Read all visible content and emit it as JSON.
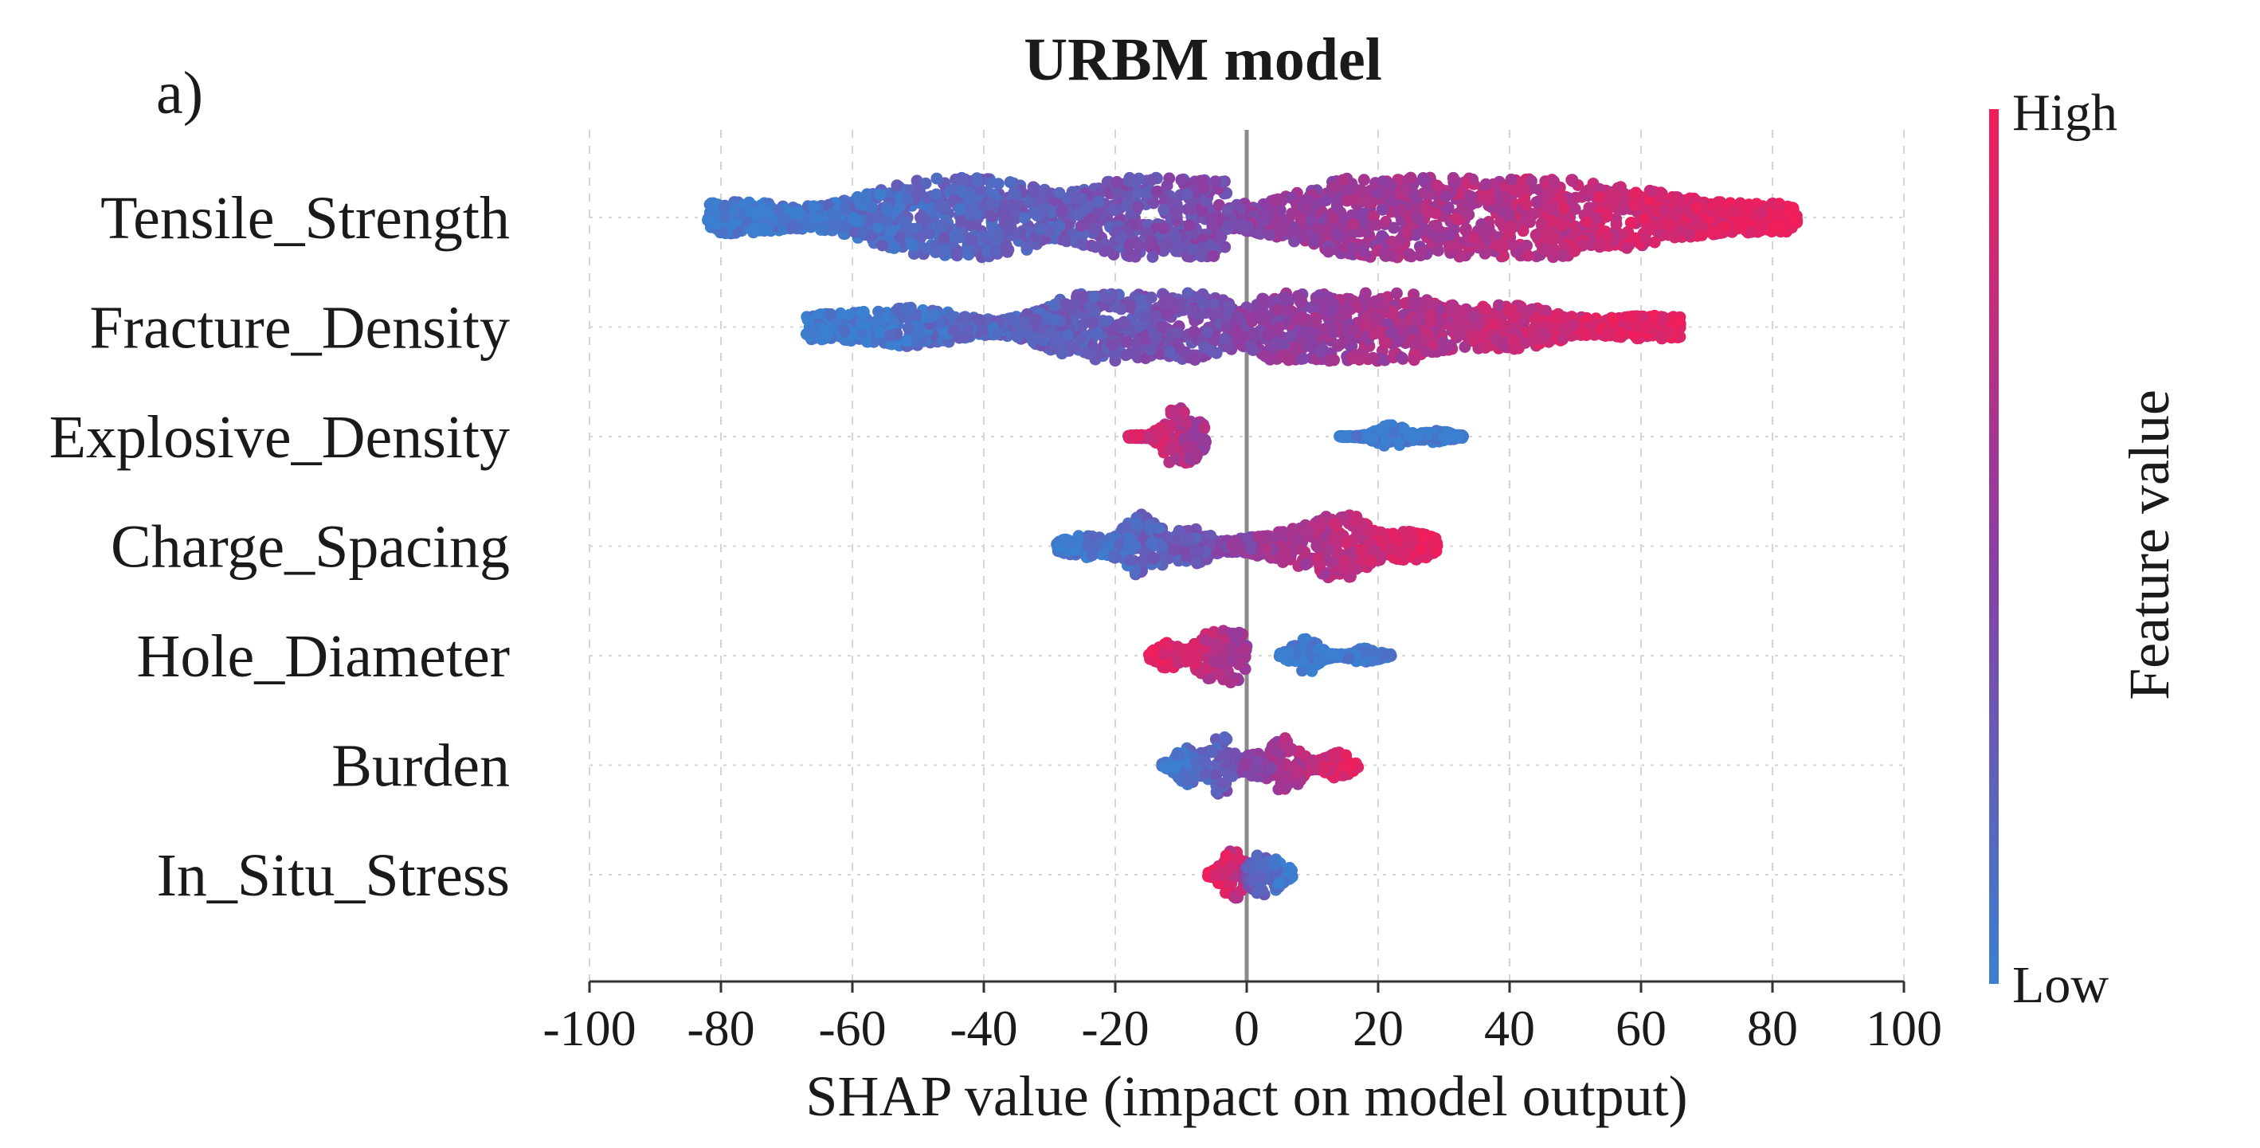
{
  "panel_label": "a)",
  "colors": {
    "low": "#3a7fd0",
    "mid": "#8b3ea3",
    "high": "#f01e5a"
  },
  "chart_data": {
    "type": "scatter",
    "subtype": "shap-beeswarm",
    "title": "URBM model",
    "xlabel": "SHAP value (impact on model output)",
    "ylabel": "",
    "xlim": [
      -100,
      100
    ],
    "xticks": [
      "-100",
      "-80",
      "-60",
      "-40",
      "-20",
      "0",
      "20",
      "40",
      "60",
      "80",
      "100"
    ],
    "grid": true,
    "features": [
      {
        "name": "Tensile_Strength",
        "segments": [
          {
            "from": -82,
            "to": -3,
            "value_from": 0.0,
            "value_to": 0.42,
            "max_spread": 1.0,
            "bumps": [
              {
                "at": -78,
                "h": 0.35
              },
              {
                "at": -52,
                "h": 0.65
              },
              {
                "at": -38,
                "h": 0.8
              },
              {
                "at": -14,
                "h": 1.0
              },
              {
                "at": -6,
                "h": 0.9
              }
            ]
          },
          {
            "from": -3,
            "to": 84,
            "value_from": 0.45,
            "value_to": 1.0,
            "max_spread": 1.0,
            "bumps": [
              {
                "at": 2,
                "h": 0.25
              },
              {
                "at": 20,
                "h": 1.0
              },
              {
                "at": 40,
                "h": 0.95
              },
              {
                "at": 58,
                "h": 0.6
              },
              {
                "at": 80,
                "h": 0.3
              }
            ]
          }
        ]
      },
      {
        "name": "Fracture_Density",
        "segments": [
          {
            "from": -67,
            "to": -2,
            "value_from": 0.0,
            "value_to": 0.42,
            "max_spread": 0.85,
            "bumps": [
              {
                "at": -65,
                "h": 0.3
              },
              {
                "at": -50,
                "h": 0.5
              },
              {
                "at": -25,
                "h": 0.75
              },
              {
                "at": -15,
                "h": 1.0
              },
              {
                "at": -5,
                "h": 0.55
              }
            ]
          },
          {
            "from": -2,
            "to": 66,
            "value_from": 0.45,
            "value_to": 1.0,
            "max_spread": 0.85,
            "bumps": [
              {
                "at": 6,
                "h": 0.6
              },
              {
                "at": 13,
                "h": 1.0
              },
              {
                "at": 22,
                "h": 0.8
              },
              {
                "at": 40,
                "h": 0.6
              },
              {
                "at": 62,
                "h": 0.3
              }
            ]
          }
        ]
      },
      {
        "name": "Explosive_Density",
        "segments": [
          {
            "from": -18,
            "to": -6,
            "value_from": 0.95,
            "value_to": 0.6,
            "max_spread": 0.75,
            "bumps": [
              {
                "at": -11,
                "h": 1.0
              },
              {
                "at": -8,
                "h": 0.6
              }
            ]
          },
          {
            "from": 14,
            "to": 33,
            "value_from": 0.05,
            "value_to": 0.0,
            "max_spread": 0.3,
            "bumps": [
              {
                "at": 22,
                "h": 1.0
              },
              {
                "at": 29,
                "h": 0.45
              }
            ]
          }
        ]
      },
      {
        "name": "Charge_Spacing",
        "segments": [
          {
            "from": -29,
            "to": -3,
            "value_from": 0.0,
            "value_to": 0.4,
            "max_spread": 0.8,
            "bumps": [
              {
                "at": -25,
                "h": 0.3
              },
              {
                "at": -16,
                "h": 1.0
              },
              {
                "at": -8,
                "h": 0.5
              }
            ]
          },
          {
            "from": -3,
            "to": 29,
            "value_from": 0.45,
            "value_to": 1.0,
            "max_spread": 0.8,
            "bumps": [
              {
                "at": 0,
                "h": 0.2
              },
              {
                "at": 8,
                "h": 0.55
              },
              {
                "at": 15,
                "h": 1.0
              },
              {
                "at": 25,
                "h": 0.4
              }
            ]
          }
        ]
      },
      {
        "name": "Hole_Diameter",
        "segments": [
          {
            "from": -15,
            "to": 0,
            "value_from": 1.0,
            "value_to": 0.55,
            "max_spread": 0.75,
            "bumps": [
              {
                "at": -12,
                "h": 0.4
              },
              {
                "at": -6,
                "h": 0.8
              },
              {
                "at": -2,
                "h": 1.0
              }
            ]
          },
          {
            "from": 5,
            "to": 22,
            "value_from": 0.05,
            "value_to": 0.0,
            "max_spread": 0.45,
            "bumps": [
              {
                "at": 9,
                "h": 1.0
              },
              {
                "at": 18,
                "h": 0.35
              }
            ]
          }
        ]
      },
      {
        "name": "Burden",
        "segments": [
          {
            "from": -13,
            "to": -1,
            "value_from": 0.0,
            "value_to": 0.35,
            "max_spread": 0.75,
            "bumps": [
              {
                "at": -9,
                "h": 0.6
              },
              {
                "at": -4,
                "h": 1.0
              }
            ]
          },
          {
            "from": -1,
            "to": 17,
            "value_from": 0.4,
            "value_to": 1.0,
            "max_spread": 0.75,
            "bumps": [
              {
                "at": 1,
                "h": 0.3
              },
              {
                "at": 6,
                "h": 1.0
              },
              {
                "at": 14,
                "h": 0.4
              }
            ]
          }
        ]
      },
      {
        "name": "In_Situ_Stress",
        "segments": [
          {
            "from": -6,
            "to": 0,
            "value_from": 1.0,
            "value_to": 0.7,
            "max_spread": 0.6,
            "bumps": [
              {
                "at": -2,
                "h": 1.0
              }
            ]
          },
          {
            "from": 0,
            "to": 7,
            "value_from": 0.3,
            "value_to": 0.0,
            "max_spread": 0.5,
            "bumps": [
              {
                "at": 2,
                "h": 1.0
              },
              {
                "at": 5,
                "h": 0.5
              }
            ]
          }
        ]
      }
    ],
    "colorbar": {
      "title": "Feature value",
      "high_label": "High",
      "low_label": "Low"
    }
  }
}
